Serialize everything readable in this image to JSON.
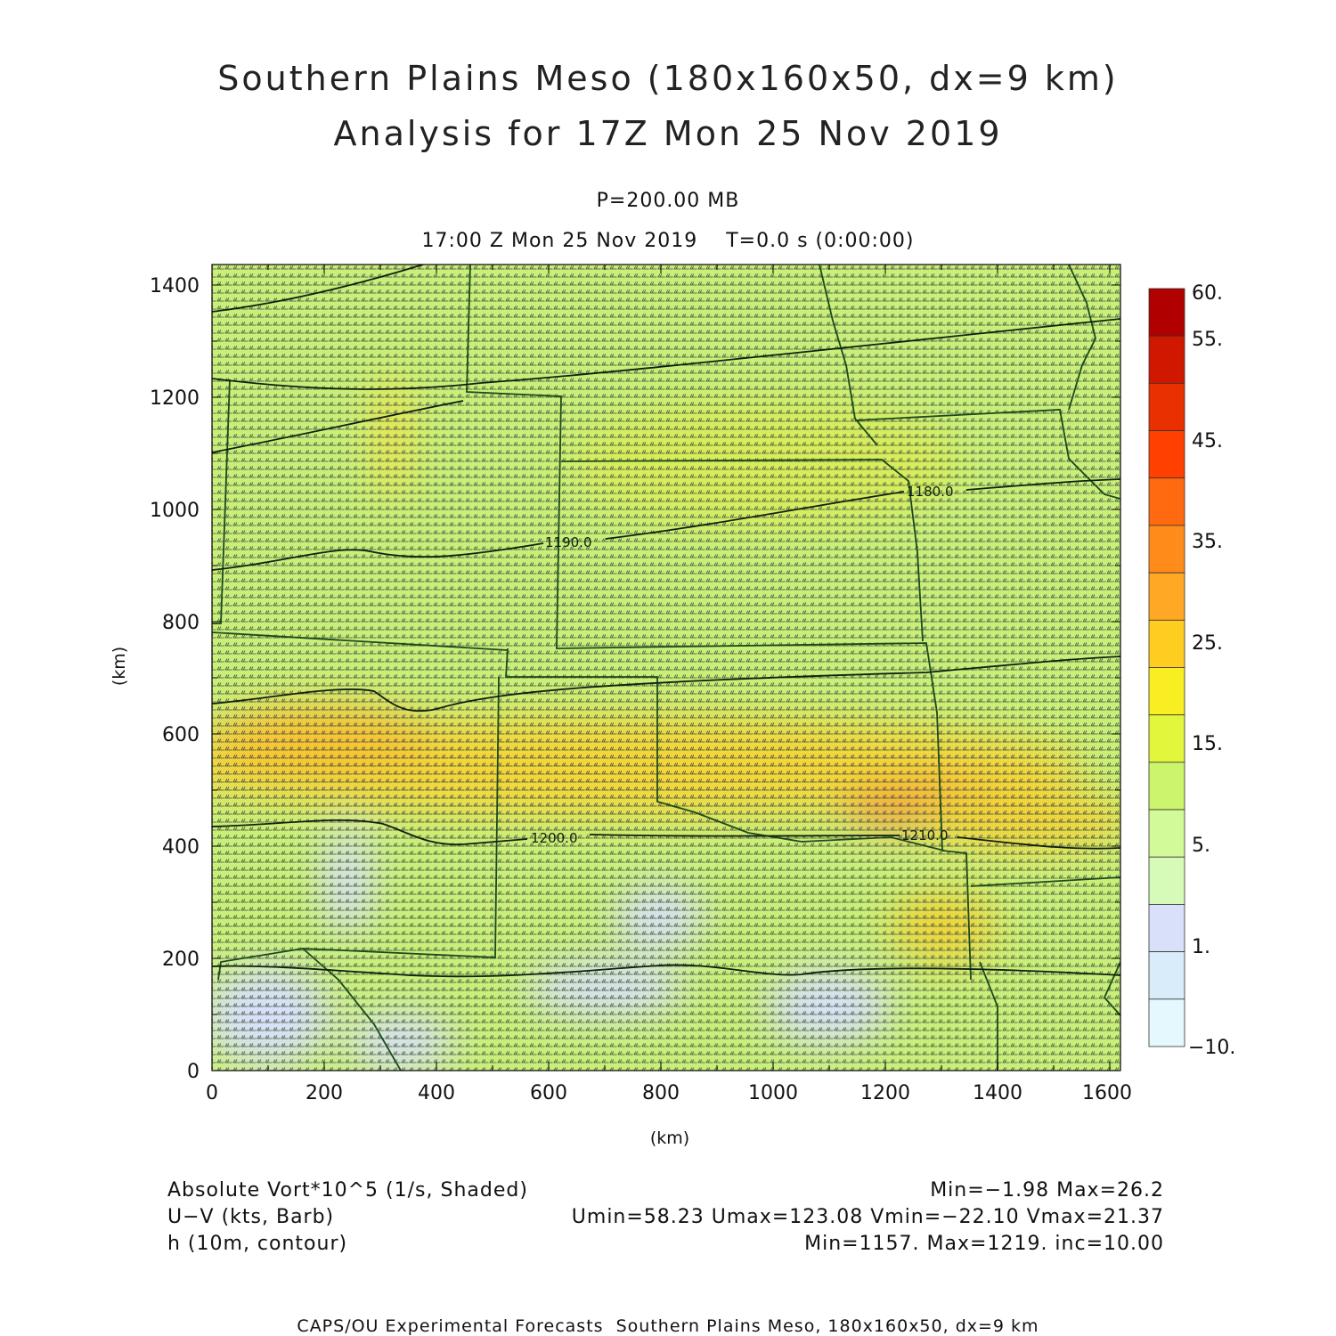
{
  "header": {
    "title_line1": "Southern Plains Meso (180x160x50, dx=9 km)",
    "title_line2": "Analysis for 17Z Mon 25 Nov 2019",
    "level": "P=200.00 MB",
    "valid_time": "17:00 Z Mon 25 Nov 2019    T=0.0 s (0:00:00)"
  },
  "axes": {
    "x_label": "(km)",
    "y_label": "(km)",
    "x_ticks": [
      "0",
      "200",
      "400",
      "600",
      "800",
      "1000",
      "1200",
      "1400",
      "1600"
    ],
    "y_ticks": [
      "0",
      "200",
      "400",
      "600",
      "800",
      "1000",
      "1200",
      "1400"
    ]
  },
  "colorbar": {
    "labels": [
      "60.",
      "55.",
      "45.",
      "35.",
      "25.",
      "15.",
      "5.",
      "1.",
      "−10."
    ],
    "colors": [
      "#b00000",
      "#d01800",
      "#e83000",
      "#ff4000",
      "#ff6a10",
      "#ff8c1a",
      "#ffa826",
      "#ffcc20",
      "#f8ee22",
      "#e2f63c",
      "#ccf46c",
      "#d2fa98",
      "#d6fab8",
      "#d8e0fa",
      "#d8ecfa",
      "#e4f8fe"
    ]
  },
  "contour_labels": [
    "1180.0",
    "1190.0",
    "1200.0",
    "1210.0"
  ],
  "legend": {
    "field1": "Absolute Vort*10^5 (1/s, Shaded)",
    "field1_stats": "Min=−1.98 Max=26.2",
    "field2": "U−V (kts, Barb)",
    "field2_stats": "Umin=58.23 Umax=123.08 Vmin=−22.10 Vmax=21.37",
    "field3": "h (10m, contour)",
    "field3_stats": "Min=1157. Max=1219. inc=10.00"
  },
  "footer": "CAPS/OU Experimental Forecasts  Southern Plains Meso, 180x160x50, dx=9 km"
}
